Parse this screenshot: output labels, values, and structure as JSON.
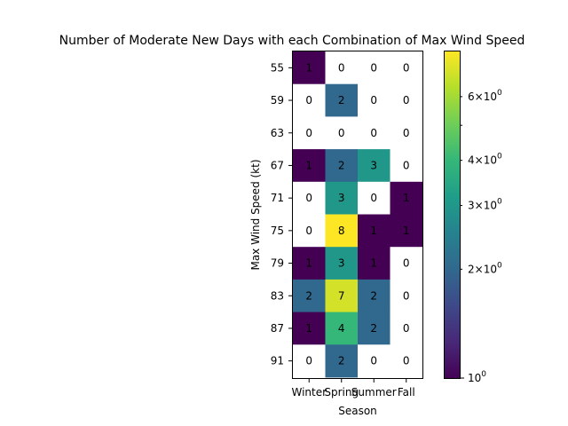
{
  "chart_data": {
    "type": "heatmap",
    "title": "Number of Moderate New Days with each Combination of Max Wind Speed",
    "xlabel": "Season",
    "ylabel": "Max Wind Speed (kt)",
    "x_categories": [
      "Winter",
      "Spring",
      "Summer",
      "Fall"
    ],
    "y_categories": [
      "55",
      "59",
      "63",
      "67",
      "71",
      "75",
      "79",
      "83",
      "87",
      "91"
    ],
    "values": [
      [
        1,
        0,
        0,
        0
      ],
      [
        0,
        2,
        0,
        0
      ],
      [
        0,
        0,
        0,
        0
      ],
      [
        1,
        2,
        3,
        0
      ],
      [
        0,
        3,
        0,
        1
      ],
      [
        0,
        8,
        1,
        1
      ],
      [
        1,
        3,
        1,
        0
      ],
      [
        2,
        7,
        2,
        0
      ],
      [
        1,
        4,
        2,
        0
      ],
      [
        0,
        2,
        0,
        0
      ]
    ],
    "zero_cells_color": "#ffffff",
    "colormap": "viridis",
    "color_scale": "log",
    "colorbar": {
      "range": [
        1,
        8
      ],
      "major_ticks": [
        {
          "value": 1,
          "label": "10^0"
        }
      ],
      "minor_ticks": [
        {
          "value": 2,
          "label": "2×10^0"
        },
        {
          "value": 3,
          "label": "3×10^0"
        },
        {
          "value": 4,
          "label": "4×10^0"
        },
        {
          "value": 6,
          "label": "6×10^0"
        }
      ]
    },
    "grid": false
  }
}
